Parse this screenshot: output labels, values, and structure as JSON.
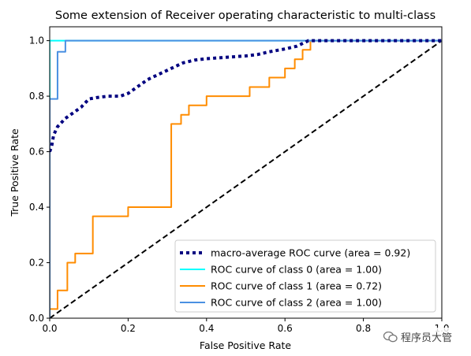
{
  "chart_data": {
    "type": "line",
    "title": "Some extension of Receiver operating characteristic to multi-class",
    "xlabel": "False Positive Rate",
    "ylabel": "True Positive Rate",
    "xlim": [
      0.0,
      1.0
    ],
    "ylim": [
      0.0,
      1.05
    ],
    "x_ticks": [
      "0.0",
      "0.2",
      "0.4",
      "0.6",
      "0.8",
      "1.0"
    ],
    "y_ticks": [
      "0.0",
      "0.2",
      "0.4",
      "0.6",
      "0.8",
      "1.0"
    ],
    "grid": false,
    "legend_position": "lower-right",
    "series": [
      {
        "name": "macro-average ROC curve (area = 0.92)",
        "color": "#000080",
        "style": "dotted",
        "x": [
          0.0,
          0.005,
          0.01,
          0.02,
          0.04,
          0.06,
          0.08,
          0.1,
          0.12,
          0.15,
          0.18,
          0.2,
          0.22,
          0.25,
          0.28,
          0.31,
          0.34,
          0.37,
          0.4,
          0.45,
          0.5,
          0.53,
          0.56,
          0.6,
          0.63,
          0.66,
          0.7,
          1.0
        ],
        "y": [
          0.6,
          0.62,
          0.66,
          0.69,
          0.72,
          0.74,
          0.76,
          0.79,
          0.795,
          0.8,
          0.8,
          0.81,
          0.83,
          0.86,
          0.88,
          0.9,
          0.92,
          0.93,
          0.935,
          0.94,
          0.945,
          0.95,
          0.96,
          0.97,
          0.98,
          1.0,
          1.0,
          1.0
        ]
      },
      {
        "name": "ROC curve of class 0 (area = 1.00)",
        "color": "#00ffff",
        "style": "solid",
        "x": [
          0.0,
          0.0,
          1.0
        ],
        "y": [
          0.0,
          1.0,
          1.0
        ]
      },
      {
        "name": "ROC curve of class 1 (area = 0.72)",
        "color": "#ff8c00",
        "style": "solid",
        "x": [
          0.0,
          0.0,
          0.02,
          0.02,
          0.045,
          0.045,
          0.065,
          0.065,
          0.11,
          0.11,
          0.2,
          0.2,
          0.31,
          0.31,
          0.335,
          0.335,
          0.355,
          0.355,
          0.4,
          0.4,
          0.51,
          0.51,
          0.56,
          0.56,
          0.6,
          0.6,
          0.625,
          0.625,
          0.645,
          0.645,
          0.665,
          0.665,
          1.0
        ],
        "y": [
          0.0,
          0.033,
          0.033,
          0.1,
          0.1,
          0.2,
          0.2,
          0.233,
          0.233,
          0.367,
          0.367,
          0.4,
          0.4,
          0.7,
          0.7,
          0.733,
          0.733,
          0.767,
          0.767,
          0.8,
          0.8,
          0.833,
          0.833,
          0.867,
          0.867,
          0.9,
          0.9,
          0.933,
          0.933,
          0.967,
          0.967,
          1.0,
          1.0
        ]
      },
      {
        "name": "ROC curve of class 2 (area = 1.00)",
        "color": "#4a90e2",
        "style": "solid",
        "x": [
          0.0,
          0.0,
          0.02,
          0.02,
          0.04,
          0.04,
          1.0
        ],
        "y": [
          0.0,
          0.79,
          0.79,
          0.96,
          0.96,
          1.0,
          1.0
        ]
      },
      {
        "name": "",
        "color": "#000000",
        "style": "dashed",
        "x": [
          0.0,
          1.0
        ],
        "y": [
          0.0,
          1.0
        ]
      }
    ]
  },
  "watermark": {
    "text": "程序员大管",
    "icon": "wechat-icon"
  }
}
